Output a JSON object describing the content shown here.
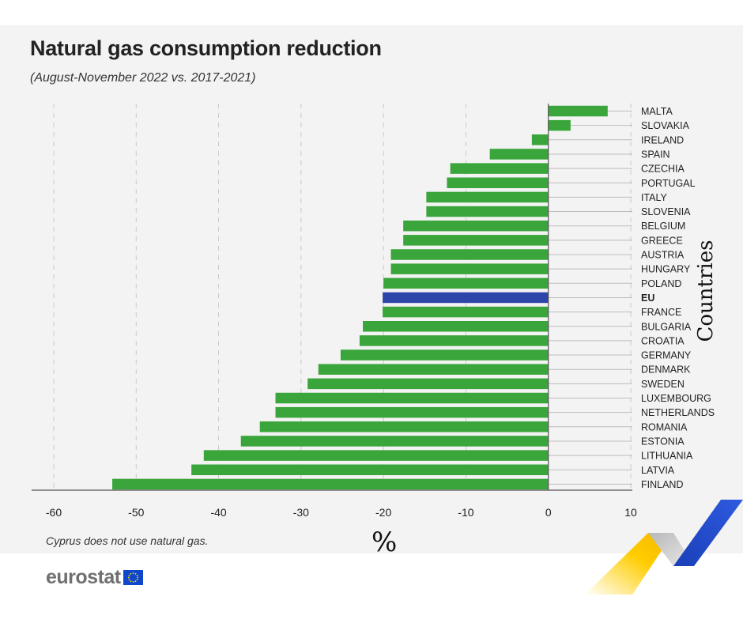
{
  "title": "Natural gas consumption reduction",
  "subtitle": "(August-November 2022 vs. 2017-2021)",
  "note": "Cyprus does not use natural gas.",
  "logo": "eurostat",
  "colors": {
    "bar": "#3aa53a",
    "highlight": "#2d45a8",
    "background": "#f3f3f3"
  },
  "chart_data": {
    "type": "bar",
    "orientation": "horizontal",
    "xlabel": "%",
    "ylabel": "Countries",
    "xlim": [
      -60,
      10
    ],
    "xticks": [
      -60,
      -50,
      -40,
      -30,
      -20,
      -10,
      0,
      10
    ],
    "grid": "vertical dashed",
    "categories": [
      "MALTA",
      "SLOVAKIA",
      "IRELAND",
      "SPAIN",
      "CZECHIA",
      "PORTUGAL",
      "ITALY",
      "SLOVENIA",
      "BELGIUM",
      "GREECE",
      "AUSTRIA",
      "HUNGARY",
      "POLAND",
      "EU",
      "FRANCE",
      "BULGARIA",
      "CROATIA",
      "GERMANY",
      "DENMARK",
      "SWEDEN",
      "LUXEMBOURG",
      "NETHERLANDS",
      "ROMANIA",
      "ESTONIA",
      "LITHUANIA",
      "LATVIA",
      "FINLAND"
    ],
    "values": [
      7.2,
      2.7,
      -2.0,
      -7.1,
      -11.9,
      -12.3,
      -14.8,
      -14.8,
      -17.6,
      -17.6,
      -19.1,
      -19.1,
      -20.0,
      -20.1,
      -20.1,
      -22.5,
      -22.9,
      -25.2,
      -27.9,
      -29.2,
      -33.1,
      -33.1,
      -35.0,
      -37.3,
      -41.8,
      -43.3,
      -52.9
    ],
    "highlight": "EU"
  }
}
